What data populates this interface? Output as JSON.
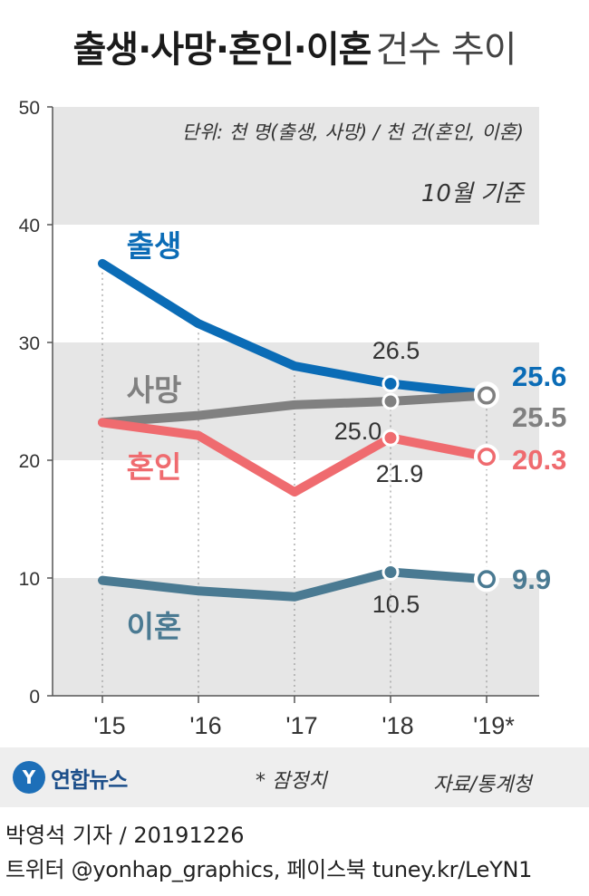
{
  "header": {
    "title_main": "출생·사망·혼인·이혼",
    "title_sub": "건수 추이"
  },
  "chart_data": {
    "type": "line",
    "categories": [
      "'15",
      "'16",
      "'17",
      "'18",
      "'19*"
    ],
    "ylim": [
      0,
      50
    ],
    "yticks": [
      0,
      10,
      20,
      30,
      40,
      50
    ],
    "unit_note": "단위: 천 명(출생, 사망) / 천 건(혼인, 이혼)",
    "basis_note": "10월 기준",
    "series": [
      {
        "name": "출생",
        "color": "#0b6cb6",
        "values": [
          36.7,
          31.6,
          28.0,
          26.5,
          25.6
        ]
      },
      {
        "name": "사망",
        "color": "#808080",
        "values": [
          23.2,
          23.8,
          24.7,
          25.0,
          25.5
        ]
      },
      {
        "name": "혼인",
        "color": "#ef6b6f",
        "values": [
          23.2,
          22.1,
          17.3,
          21.9,
          20.3
        ]
      },
      {
        "name": "이혼",
        "color": "#4a7a92",
        "values": [
          9.8,
          8.9,
          8.4,
          10.5,
          9.9
        ]
      }
    ],
    "data_labels": [
      {
        "series": "출생",
        "index": 3,
        "text": "26.5"
      },
      {
        "series": "사망",
        "index": 3,
        "text": "25.0"
      },
      {
        "series": "혼인",
        "index": 3,
        "text": "21.9"
      },
      {
        "series": "이혼",
        "index": 3,
        "text": "10.5"
      },
      {
        "series": "출생",
        "index": 4,
        "text": "25.6"
      },
      {
        "series": "사망",
        "index": 4,
        "text": "25.5"
      },
      {
        "series": "혼인",
        "index": 4,
        "text": "20.3"
      },
      {
        "series": "이혼",
        "index": 4,
        "text": "9.9"
      }
    ],
    "grid": "alternating-bands"
  },
  "footer": {
    "logo_mark": "Y",
    "logo_text": "연합뉴스",
    "footnote": "* 잠정치",
    "source": "자료/통계청",
    "credit_line1": "박영석 기자 /  20191226",
    "credit_line2": "트위터 @yonhap_graphics, 페이스북 tuney.kr/LeYN1"
  }
}
